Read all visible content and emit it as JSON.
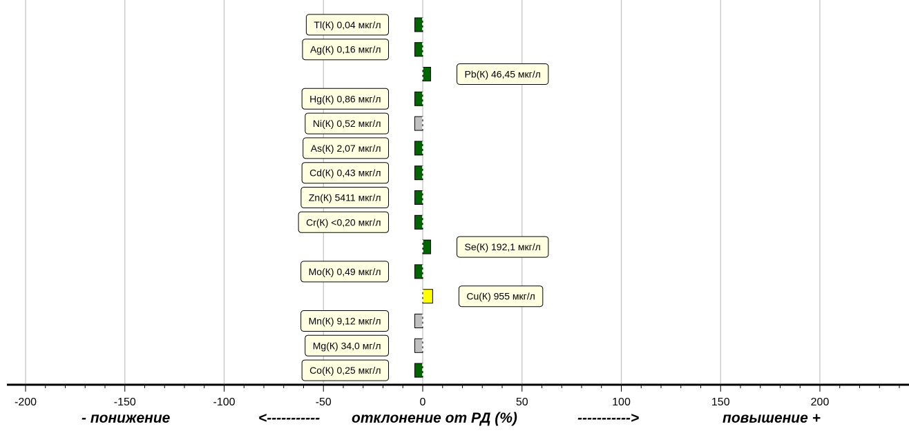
{
  "chart_data": {
    "type": "bar",
    "orientation": "horizontal",
    "xlim": [
      -205,
      245
    ],
    "grid": true,
    "x_ticks": [
      -200,
      -150,
      -100,
      -50,
      0,
      50,
      100,
      150,
      200
    ],
    "axis_captions": {
      "left": "- понижение",
      "arrow_left": "<-----------",
      "center": "отклонение от РД (%)",
      "arrow_right": "----------->",
      "right": "повышение +"
    },
    "colors": {
      "green": "#006400",
      "gray": "#c0c0c0",
      "yellow": "#ffff00",
      "label_bg": "#ffffe1",
      "grid": "#c0c0c0"
    },
    "bars": [
      {
        "label": "Tl(К) 0,04 мкг/л",
        "value": -4,
        "color": "green"
      },
      {
        "label": "Ag(К) 0,16 мкг/л",
        "value": -4,
        "color": "green"
      },
      {
        "label": "Pb(К) 46,45 мкг/л",
        "value": 4,
        "color": "green"
      },
      {
        "label": "Hg(К) 0,86 мкг/л",
        "value": -4,
        "color": "green"
      },
      {
        "label": "Ni(К) 0,52 мкг/л",
        "value": -4,
        "color": "gray"
      },
      {
        "label": "As(К) 2,07 мкг/л",
        "value": -4,
        "color": "green"
      },
      {
        "label": "Cd(К) 0,43 мкг/л",
        "value": -4,
        "color": "green"
      },
      {
        "label": "Zn(К) 5411 мкг/л",
        "value": -4,
        "color": "green"
      },
      {
        "label": "Cr(К) <0,20 мкг/л",
        "value": -4,
        "color": "green"
      },
      {
        "label": "Se(К) 192,1 мкг/л",
        "value": 4,
        "color": "green"
      },
      {
        "label": "Mo(К) 0,49 мкг/л",
        "value": -4,
        "color": "green"
      },
      {
        "label": "Cu(К) 955 мкг/л",
        "value": 5,
        "color": "yellow"
      },
      {
        "label": "Mn(К) 9,12 мкг/л",
        "value": -4,
        "color": "gray"
      },
      {
        "label": "Mg(К) 34,0 мг/л",
        "value": -4,
        "color": "gray"
      },
      {
        "label": "Co(К) 0,25 мкг/л",
        "value": -4,
        "color": "green"
      }
    ]
  }
}
